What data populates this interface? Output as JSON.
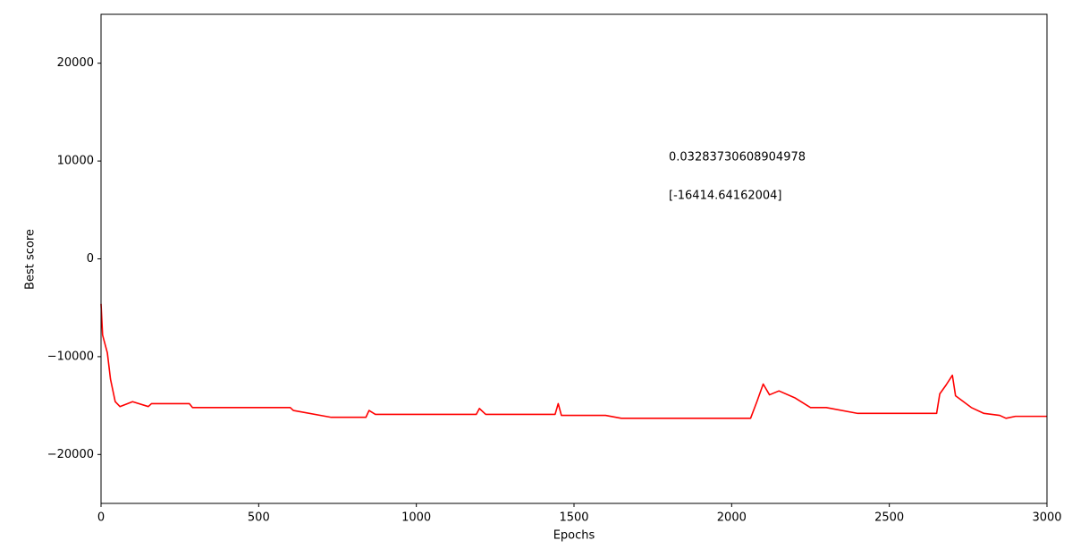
{
  "chart_data": {
    "type": "line",
    "xlabel": "Epochs",
    "ylabel": "Best score",
    "annotations": [
      "0.03283730608904978",
      "[-16414.64162004]"
    ],
    "x": [
      0,
      5,
      20,
      30,
      45,
      60,
      100,
      150,
      160,
      280,
      290,
      600,
      610,
      730,
      840,
      850,
      870,
      1190,
      1200,
      1220,
      1440,
      1450,
      1460,
      1600,
      1650,
      2060,
      2080,
      2100,
      2120,
      2150,
      2200,
      2250,
      2300,
      2400,
      2650,
      2660,
      2680,
      2700,
      2710,
      2760,
      2800,
      2850,
      2870,
      2900,
      3000
    ],
    "series": [
      {
        "name": "Best score",
        "color": "#ff0000",
        "values": [
          -4600,
          -7800,
          -9600,
          -12300,
          -14600,
          -15100,
          -14600,
          -15100,
          -14800,
          -14800,
          -15200,
          -15200,
          -15500,
          -16200,
          -16200,
          -15500,
          -15900,
          -15900,
          -15300,
          -15900,
          -15900,
          -14800,
          -16000,
          -16000,
          -16300,
          -16300,
          -14600,
          -12800,
          -13900,
          -13500,
          -14200,
          -15200,
          -15200,
          -15800,
          -15800,
          -13800,
          -12900,
          -11900,
          -14000,
          -15200,
          -15800,
          -16000,
          -16300,
          -16100,
          -16100
        ]
      }
    ],
    "xlim": [
      0,
      3000
    ],
    "xticks": [
      0,
      500,
      1000,
      1500,
      2000,
      2500,
      3000
    ],
    "ylim": [
      -25000,
      25000
    ],
    "yticks": [
      {
        "value": -20000,
        "label": "−20000"
      },
      {
        "value": -10000,
        "label": "−10000"
      },
      0,
      10000,
      20000
    ]
  }
}
